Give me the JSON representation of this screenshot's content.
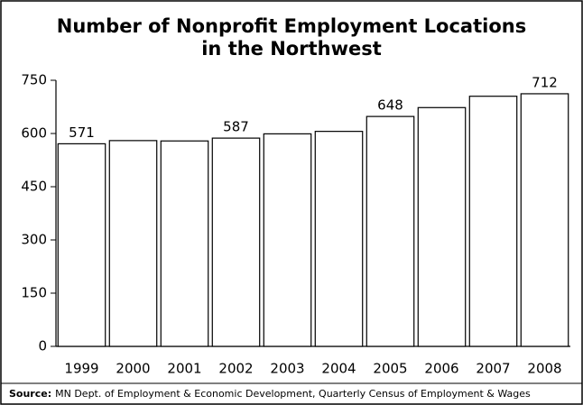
{
  "chart_data": {
    "type": "bar",
    "title": [
      "Number of Nonprofit Employment Locations",
      "in the Northwest"
    ],
    "categories": [
      "1999",
      "2000",
      "2001",
      "2002",
      "2003",
      "2004",
      "2005",
      "2006",
      "2007",
      "2008"
    ],
    "values": [
      571,
      580,
      579,
      587,
      599,
      606,
      648,
      673,
      705,
      712
    ],
    "value_labels": [
      "571",
      null,
      null,
      "587",
      null,
      null,
      "648",
      null,
      null,
      "712"
    ],
    "color": "#ffffff",
    "ylim": [
      0,
      750
    ],
    "yticks": [
      0,
      150,
      300,
      450,
      600,
      750
    ],
    "grid": false,
    "source_label": "Source:",
    "source": "MN Dept. of Employment & Economic Development, Quarterly Census of Employment & Wages"
  }
}
